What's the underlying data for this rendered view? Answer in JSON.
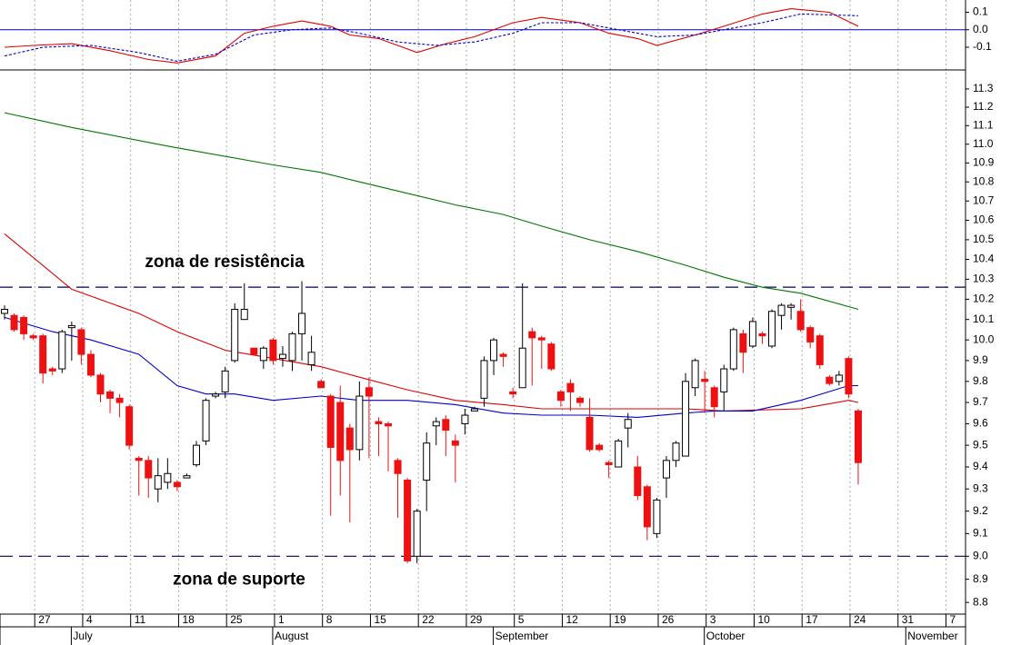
{
  "chart_data": [
    {
      "type": "line",
      "ylim": [
        -0.23,
        0.17
      ],
      "yticks": [
        {
          "value": 0.1,
          "label": "0.1"
        },
        {
          "value": 0,
          "label": "0.0"
        },
        {
          "value": -0.1,
          "label": "-0.1"
        }
      ],
      "zero_line_color": "#0000cc",
      "series": [
        {
          "color": "#e00000",
          "dash": false,
          "x": [
            0,
            3,
            7,
            11,
            15,
            18,
            22,
            25,
            28,
            31,
            34,
            36,
            39,
            43,
            46,
            49,
            53,
            56,
            60,
            63,
            66,
            68,
            72,
            75,
            79,
            82,
            86,
            89
          ],
          "values": [
            -0.1,
            -0.09,
            -0.08,
            -0.12,
            -0.17,
            -0.19,
            -0.15,
            -0.02,
            0.02,
            0.05,
            0.02,
            -0.03,
            -0.05,
            -0.13,
            -0.08,
            -0.04,
            0.04,
            0.07,
            0.04,
            -0.02,
            -0.05,
            -0.09,
            -0.03,
            0.02,
            0.09,
            0.12,
            0.1,
            0.02
          ]
        },
        {
          "color": "#0000cc",
          "dash": true,
          "x": [
            0,
            4,
            9,
            14,
            18,
            22,
            26,
            30,
            34,
            37,
            41,
            45,
            49,
            53,
            56,
            60,
            64,
            68,
            72,
            75,
            79,
            83,
            89
          ],
          "values": [
            -0.15,
            -0.1,
            -0.09,
            -0.13,
            -0.18,
            -0.14,
            -0.03,
            0.0,
            0.01,
            -0.02,
            -0.07,
            -0.09,
            -0.07,
            -0.02,
            0.04,
            0.04,
            0.0,
            -0.04,
            -0.03,
            0.0,
            0.04,
            0.09,
            0.08
          ]
        }
      ]
    },
    {
      "type": "candlestick",
      "log_scale": true,
      "grid": true,
      "up_color": "#ffffff",
      "down_color": "#ee1111",
      "ylim": [
        8.75,
        11.4
      ],
      "yticks": [
        8.8,
        8.9,
        {
          "value": 9.0,
          "label": "9.0"
        },
        9.1,
        9.2,
        9.3,
        9.4,
        9.5,
        9.6,
        9.7,
        9.8,
        9.9,
        {
          "value": 10.0,
          "label": "10.0"
        },
        10.1,
        10.2,
        10.3,
        10.4,
        10.5,
        10.6,
        10.7,
        10.8,
        10.9,
        {
          "value": 11.0,
          "label": "11.0"
        },
        11.1,
        11.2,
        11.3
      ],
      "categories": [
        null,
        null,
        null,
        null,
        "27",
        null,
        null,
        null,
        null,
        "4",
        null,
        null,
        null,
        null,
        "11",
        null,
        null,
        null,
        null,
        "18",
        null,
        null,
        null,
        null,
        "25",
        null,
        null,
        null,
        null,
        "1",
        null,
        null,
        null,
        null,
        "8",
        null,
        null,
        null,
        null,
        "15",
        null,
        null,
        null,
        null,
        "22",
        null,
        null,
        null,
        null,
        "29",
        null,
        null,
        null,
        null,
        "5",
        null,
        null,
        null,
        null,
        "12",
        null,
        null,
        null,
        null,
        "19",
        null,
        null,
        null,
        null,
        "26",
        null,
        null,
        null,
        null,
        "3",
        null,
        null,
        null,
        null,
        "10",
        null,
        null,
        null,
        null,
        "17",
        null,
        null,
        null,
        null,
        "24",
        null,
        null,
        null,
        null,
        "31",
        null,
        null,
        null,
        null,
        "7",
        null
      ],
      "months": [
        {
          "label": "July",
          "category": 8
        },
        {
          "label": "August",
          "category": 29
        },
        {
          "label": "September",
          "category": 52
        },
        {
          "label": "October",
          "category": 74
        },
        {
          "label": "November",
          "category": 95
        }
      ],
      "open": [
        10.13,
        10.12,
        10.11,
        10.02,
        10.02,
        9.86,
        9.86,
        10.06,
        10.05,
        9.93,
        9.83,
        9.75,
        9.72,
        9.68,
        9.44,
        9.43,
        9.3,
        9.33,
        9.33,
        9.35,
        9.41,
        9.52,
        9.73,
        9.75,
        9.9,
        10.1,
        9.96,
        9.9,
        10.0,
        9.91,
        9.9,
        10.03,
        9.88,
        9.8,
        9.73,
        9.7,
        9.58,
        9.48,
        9.77,
        9.61,
        9.6,
        9.43,
        9.34,
        9.0,
        9.34,
        9.59,
        9.62,
        9.52,
        9.6,
        9.66,
        9.72,
        9.9,
        9.93,
        9.75,
        9.77,
        10.04,
        10.01,
        9.98,
        9.75,
        9.79,
        9.72,
        9.63,
        9.5,
        9.42,
        9.4,
        9.58,
        9.4,
        9.31,
        9.1,
        9.35,
        9.43,
        9.45,
        9.77,
        9.81,
        9.77,
        9.75,
        9.86,
        10.03,
        9.97,
        10.03,
        9.97,
        10.12,
        10.16,
        10.14,
        10.06,
        10.02,
        9.82,
        9.8,
        9.91,
        9.66,
        null,
        null,
        null,
        null,
        null,
        null,
        null,
        null,
        null,
        null,
        null
      ],
      "high": [
        10.17,
        10.13,
        10.12,
        10.03,
        10.03,
        9.87,
        10.05,
        10.09,
        10.06,
        9.95,
        9.84,
        9.76,
        9.74,
        9.69,
        9.45,
        9.45,
        9.44,
        9.44,
        9.34,
        9.37,
        9.52,
        9.72,
        9.75,
        9.87,
        10.18,
        10.28,
        9.96,
        9.97,
        10.01,
        9.97,
        10.04,
        10.29,
        10.02,
        9.81,
        9.74,
        9.78,
        9.6,
        9.8,
        9.82,
        9.63,
        9.61,
        9.44,
        9.35,
        9.21,
        9.56,
        9.63,
        9.64,
        9.55,
        9.67,
        9.68,
        9.92,
        10.01,
        9.94,
        9.77,
        10.28,
        10.06,
        10.02,
        9.99,
        9.76,
        9.81,
        9.73,
        9.72,
        9.51,
        9.43,
        9.53,
        9.65,
        9.45,
        9.32,
        9.26,
        9.45,
        9.52,
        9.84,
        9.91,
        9.85,
        9.78,
        9.88,
        10.06,
        10.05,
        10.11,
        10.04,
        10.15,
        10.18,
        10.18,
        10.2,
        10.07,
        10.03,
        9.83,
        9.85,
        9.92,
        9.67,
        null,
        null,
        null,
        null,
        null,
        null,
        null,
        null,
        null,
        null,
        null
      ],
      "low": [
        10.1,
        10.04,
        10.0,
        10.0,
        9.79,
        9.83,
        9.84,
        9.9,
        9.88,
        9.82,
        9.7,
        9.65,
        9.63,
        9.48,
        9.27,
        9.26,
        9.24,
        9.3,
        9.29,
        9.35,
        9.4,
        9.5,
        9.72,
        9.72,
        9.89,
        10.1,
        9.93,
        9.86,
        9.88,
        9.87,
        9.85,
        9.9,
        9.85,
        9.77,
        9.18,
        9.27,
        9.15,
        9.43,
        9.44,
        9.45,
        9.38,
        9.17,
        8.97,
        8.97,
        9.2,
        9.5,
        9.45,
        9.33,
        9.55,
        9.66,
        9.68,
        9.83,
        9.87,
        9.72,
        9.77,
        9.78,
        9.86,
        9.85,
        9.68,
        9.66,
        9.68,
        9.47,
        9.47,
        9.35,
        9.4,
        9.49,
        9.25,
        9.07,
        9.08,
        9.26,
        9.4,
        9.45,
        9.73,
        9.65,
        9.63,
        9.66,
        9.85,
        9.84,
        9.96,
        9.98,
        9.96,
        10.05,
        10.1,
        10.04,
        9.96,
        9.86,
        9.78,
        9.78,
        9.72,
        9.32,
        null,
        null,
        null,
        null,
        null,
        null,
        null,
        null,
        null,
        null,
        null
      ],
      "close": [
        10.15,
        10.05,
        10.03,
        10.01,
        9.84,
        9.85,
        10.04,
        10.07,
        9.93,
        9.83,
        9.74,
        9.72,
        9.7,
        9.5,
        9.43,
        9.35,
        9.36,
        9.37,
        9.31,
        9.36,
        9.5,
        9.71,
        9.74,
        9.85,
        10.15,
        10.15,
        9.93,
        9.96,
        9.9,
        9.93,
        10.03,
        10.13,
        9.94,
        9.77,
        9.49,
        9.43,
        9.48,
        9.73,
        9.73,
        9.6,
        9.59,
        9.37,
        8.98,
        9.2,
        9.51,
        9.61,
        9.57,
        9.5,
        9.64,
        9.67,
        9.9,
        10.0,
        9.92,
        9.74,
        9.96,
        10.01,
        10.0,
        9.86,
        9.71,
        9.75,
        9.7,
        9.48,
        9.48,
        9.41,
        9.52,
        9.62,
        9.27,
        9.13,
        9.25,
        9.43,
        9.51,
        9.8,
        9.9,
        9.8,
        9.68,
        9.86,
        10.05,
        9.94,
        10.09,
        10.02,
        10.14,
        10.17,
        10.17,
        10.05,
        9.99,
        9.88,
        9.79,
        9.83,
        9.74,
        9.42,
        null,
        null,
        null,
        null,
        null,
        null,
        null,
        null,
        null,
        null,
        null
      ],
      "lines": [
        {
          "color": "#007700",
          "x": [
            0,
            7,
            17,
            28,
            33,
            37,
            42,
            47,
            52,
            56,
            61,
            66,
            71,
            75,
            79,
            83,
            89
          ],
          "values": [
            11.17,
            11.09,
            10.99,
            10.89,
            10.85,
            10.8,
            10.74,
            10.68,
            10.63,
            10.57,
            10.5,
            10.44,
            10.37,
            10.31,
            10.26,
            10.23,
            10.15
          ]
        },
        {
          "color": "#dd0000",
          "x": [
            0,
            7,
            14,
            18,
            23,
            28,
            33,
            37,
            42,
            47,
            52,
            56,
            61,
            66,
            71,
            75,
            83,
            88,
            89
          ],
          "values": [
            10.53,
            10.25,
            10.13,
            10.04,
            9.95,
            9.91,
            9.87,
            9.82,
            9.76,
            9.71,
            9.69,
            9.67,
            9.67,
            9.67,
            9.67,
            9.66,
            9.67,
            9.71,
            9.7
          ]
        },
        {
          "color": "#0000cc",
          "x": [
            0,
            5,
            9,
            14,
            18,
            21,
            24,
            28,
            33,
            37,
            42,
            47,
            52,
            56,
            61,
            66,
            71,
            74,
            78,
            83,
            88,
            89
          ],
          "values": [
            10.11,
            10.04,
            10.0,
            9.93,
            9.78,
            9.74,
            9.74,
            9.71,
            9.73,
            9.71,
            9.71,
            9.69,
            9.65,
            9.64,
            9.64,
            9.63,
            9.65,
            9.66,
            9.66,
            9.71,
            9.78,
            9.78
          ]
        }
      ],
      "annotations": [
        {
          "text": "zona de resistência",
          "value": 10.26
        },
        {
          "text": "zona de suporte",
          "value": 9.0
        }
      ],
      "annotation_color": "#000066"
    }
  ]
}
